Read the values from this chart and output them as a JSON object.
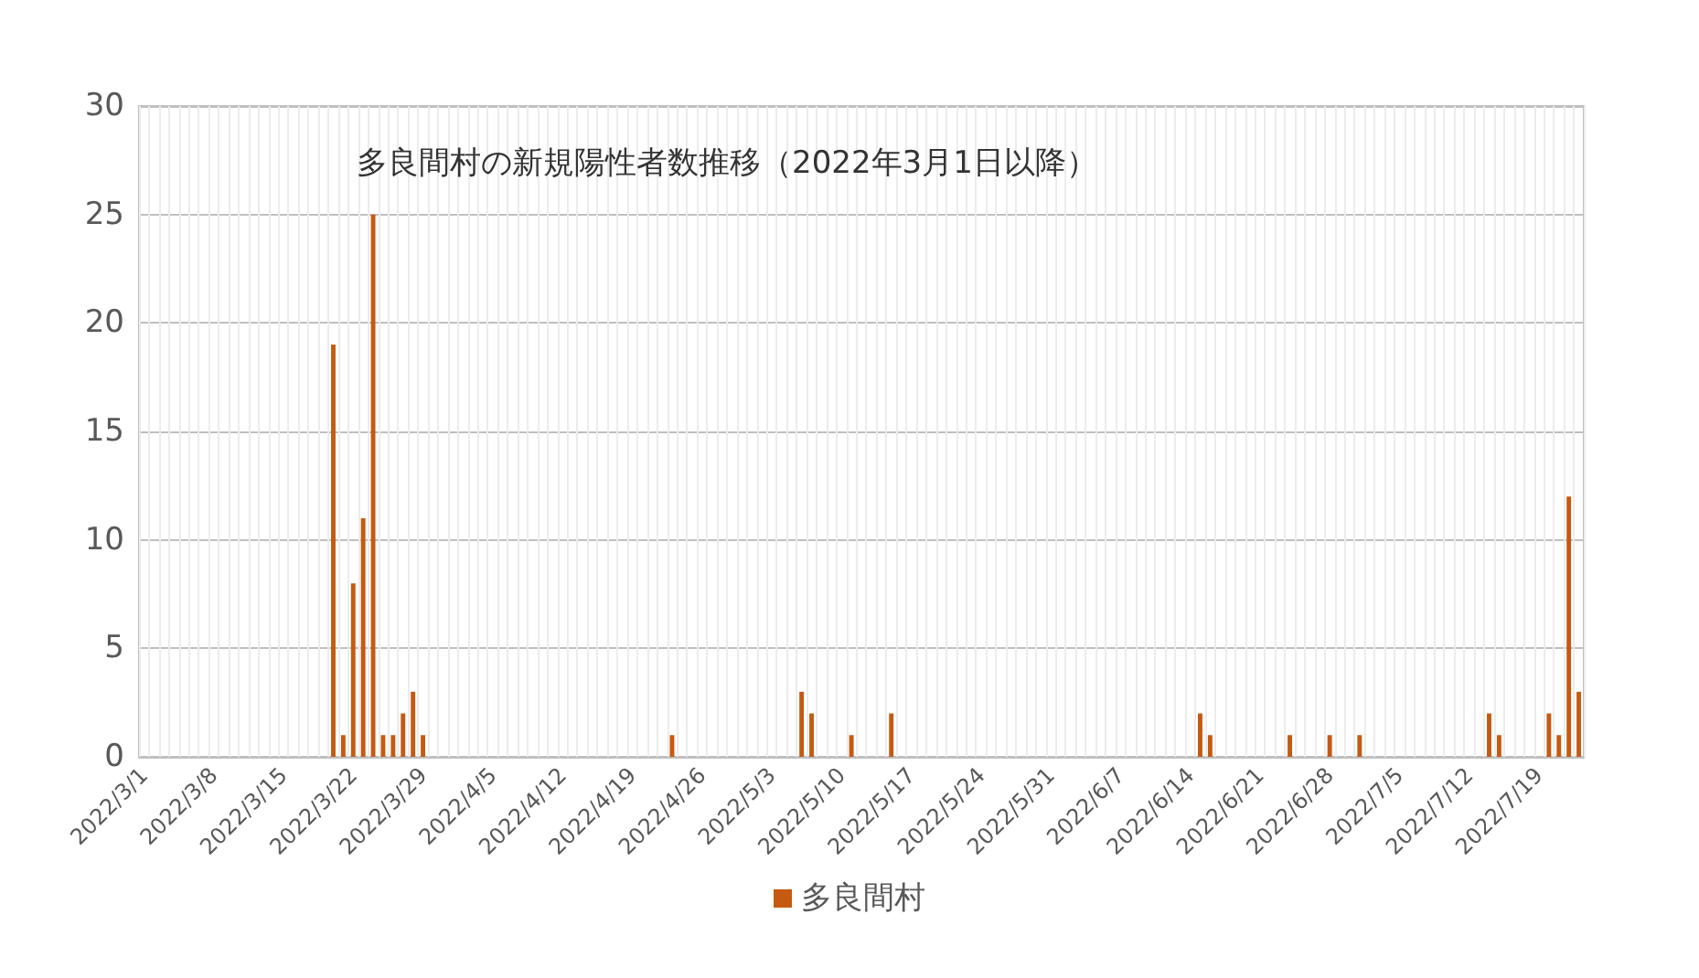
{
  "chart_data": {
    "type": "bar",
    "title": "多良間村の新規陽性者数推移（2022年3月1日以降）",
    "categories": [
      "2022/3/1",
      null,
      null,
      null,
      null,
      null,
      null,
      "2022/3/8",
      null,
      null,
      null,
      null,
      null,
      null,
      "2022/3/15",
      null,
      null,
      null,
      null,
      null,
      null,
      "2022/3/22",
      null,
      null,
      null,
      null,
      null,
      null,
      "2022/3/29",
      null,
      null,
      null,
      null,
      null,
      null,
      "2022/4/5",
      null,
      null,
      null,
      null,
      null,
      null,
      "2022/4/12",
      null,
      null,
      null,
      null,
      null,
      null,
      "2022/4/19",
      null,
      null,
      null,
      null,
      null,
      null,
      "2022/4/26",
      null,
      null,
      null,
      null,
      null,
      null,
      "2022/5/3",
      null,
      null,
      null,
      null,
      null,
      null,
      "2022/5/10",
      null,
      null,
      null,
      null,
      null,
      null,
      "2022/5/17",
      null,
      null,
      null,
      null,
      null,
      null,
      "2022/5/24",
      null,
      null,
      null,
      null,
      null,
      null,
      "2022/5/31",
      null,
      null,
      null,
      null,
      null,
      null,
      "2022/6/7",
      null,
      null,
      null,
      null,
      null,
      null,
      "2022/6/14",
      null,
      null,
      null,
      null,
      null,
      null,
      "2022/6/21",
      null,
      null,
      null,
      null,
      null,
      null,
      "2022/6/28",
      null,
      null,
      null,
      null,
      null,
      null,
      "2022/7/5",
      null,
      null,
      null,
      null,
      null,
      null,
      "2022/7/12",
      null,
      null,
      null,
      null,
      null,
      null,
      "2022/7/19",
      null,
      null,
      null,
      null
    ],
    "series": [
      {
        "name": "多良間村",
        "color": "#c55a11",
        "values": [
          0,
          0,
          0,
          0,
          0,
          0,
          0,
          0,
          0,
          0,
          0,
          0,
          0,
          0,
          0,
          0,
          0,
          0,
          0,
          19,
          1,
          8,
          11,
          25,
          1,
          1,
          2,
          3,
          1,
          0,
          0,
          0,
          0,
          0,
          0,
          0,
          0,
          0,
          0,
          0,
          0,
          0,
          0,
          0,
          0,
          0,
          0,
          0,
          0,
          0,
          0,
          0,
          0,
          1,
          0,
          0,
          0,
          0,
          0,
          0,
          0,
          0,
          0,
          0,
          0,
          0,
          3,
          2,
          0,
          0,
          0,
          1,
          0,
          0,
          0,
          2,
          0,
          0,
          0,
          0,
          0,
          0,
          0,
          0,
          0,
          0,
          0,
          0,
          0,
          0,
          0,
          0,
          0,
          0,
          0,
          0,
          0,
          0,
          0,
          0,
          0,
          0,
          0,
          0,
          0,
          0,
          2,
          1,
          0,
          0,
          0,
          0,
          0,
          0,
          0,
          1,
          0,
          0,
          0,
          1,
          0,
          0,
          1,
          0,
          0,
          0,
          0,
          0,
          0,
          0,
          0,
          0,
          0,
          0,
          0,
          2,
          1,
          0,
          0,
          0,
          0,
          2,
          1,
          12,
          3
        ]
      }
    ],
    "ylim": [
      0,
      30
    ],
    "yticks": [
      0,
      5,
      10,
      15,
      20,
      25,
      30
    ],
    "grid": true,
    "legend": "bottom"
  }
}
